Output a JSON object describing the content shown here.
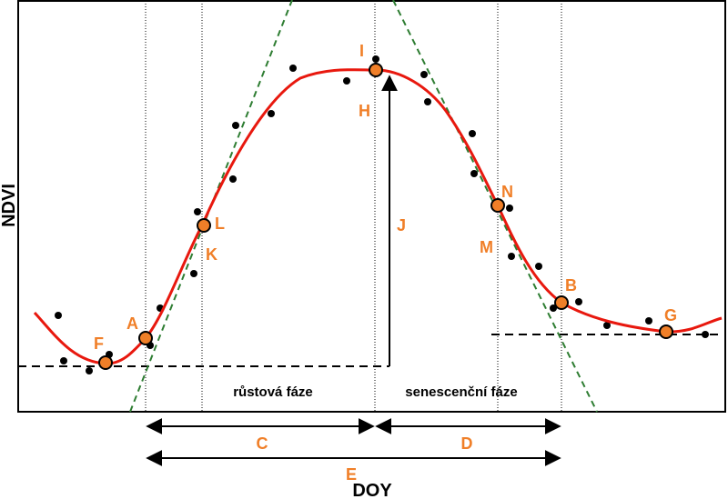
{
  "axes": {
    "x_label": "DOY",
    "y_label": "NDVI"
  },
  "phases": {
    "growth": "růstová fáze",
    "senescence": "senescenční fáze"
  },
  "points": {
    "A": "A",
    "B": "B",
    "F": "F",
    "G": "G",
    "I": "I",
    "L": "L",
    "N": "N"
  },
  "labels": {
    "H": "H",
    "J": "J",
    "K": "K",
    "M": "M"
  },
  "intervals": {
    "C": "C",
    "D": "D",
    "E": "E"
  },
  "colors": {
    "curve": "#e8180e",
    "tangent": "#2e7d32",
    "point_fill": "#f07f28",
    "label": "#f07f28",
    "dots": "#000000"
  }
}
